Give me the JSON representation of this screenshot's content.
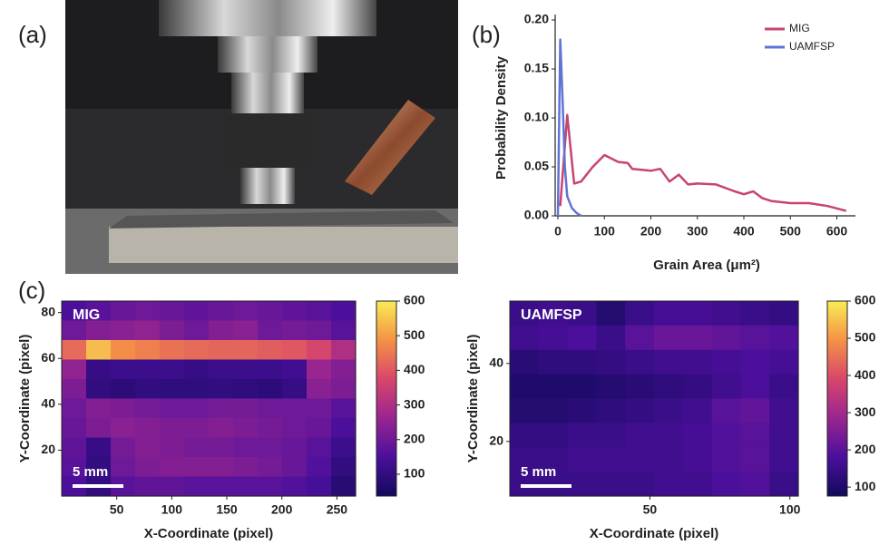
{
  "panel_labels": [
    "(a)",
    "(b)",
    "(c)"
  ],
  "chart_data": [
    {
      "type": "line",
      "xlabel": "Grain Area (μm²)",
      "ylabel": "Probability Density",
      "xlim": [
        0,
        640
      ],
      "xticks": [
        0,
        100,
        200,
        300,
        400,
        500,
        600
      ],
      "ylim": [
        0,
        0.2
      ],
      "yticks": [
        {
          "value": 0,
          "label": "0.00"
        },
        {
          "value": 0.05,
          "label": "0.05"
        },
        {
          "value": 0.1,
          "label": "0.10"
        },
        {
          "value": 0.15,
          "label": "0.15"
        },
        {
          "value": 0.2,
          "label": "0.20"
        }
      ],
      "legend": "upper right",
      "series": [
        {
          "name": "MIG",
          "color": "#c8446f",
          "x": [
            5,
            20,
            35,
            50,
            75,
            100,
            130,
            150,
            160,
            200,
            220,
            240,
            260,
            280,
            300,
            340,
            380,
            400,
            420,
            440,
            460,
            500,
            540,
            580,
            620
          ],
          "values": [
            0.01,
            0.103,
            0.033,
            0.035,
            0.05,
            0.062,
            0.055,
            0.054,
            0.048,
            0.046,
            0.048,
            0.035,
            0.042,
            0.032,
            0.033,
            0.032,
            0.025,
            0.022,
            0.025,
            0.018,
            0.015,
            0.013,
            0.013,
            0.01,
            0.005
          ]
        },
        {
          "name": "UAMFSP",
          "color": "#5f73d6",
          "x": [
            0,
            5,
            10,
            15,
            20,
            30,
            40,
            50
          ],
          "values": [
            0,
            0.18,
            0.12,
            0.05,
            0.02,
            0.008,
            0.003,
            0
          ]
        }
      ]
    },
    {
      "type": "heatmap",
      "title": "MIG",
      "scalebar": "5 mm",
      "xlabel": "X-Coordinate (pixel)",
      "ylabel": "Y-Coordinate (pixel)",
      "xlim": [
        0,
        267
      ],
      "xticks": [
        50,
        100,
        150,
        200,
        250
      ],
      "ylim": [
        0,
        85
      ],
      "yticks": [
        20,
        40,
        60,
        80
      ],
      "clim": [
        37,
        600
      ],
      "cticks": [
        100,
        200,
        300,
        400,
        500,
        600
      ],
      "colormap": [
        "#120a5c",
        "#4b0f9c",
        "#9a2590",
        "#d8466a",
        "#f59246",
        "#f8ec55"
      ],
      "z": [
        [
          150,
          170,
          190,
          200,
          190,
          180,
          190,
          200,
          190,
          180,
          170,
          150
        ],
        [
          200,
          230,
          240,
          250,
          220,
          200,
          230,
          240,
          200,
          210,
          200,
          170
        ],
        [
          430,
          540,
          480,
          460,
          440,
          430,
          420,
          420,
          410,
          400,
          370,
          300
        ],
        [
          250,
          110,
          120,
          120,
          120,
          110,
          120,
          120,
          120,
          130,
          260,
          230
        ],
        [
          220,
          100,
          90,
          100,
          95,
          95,
          100,
          95,
          90,
          110,
          240,
          220
        ],
        [
          200,
          230,
          220,
          210,
          200,
          200,
          210,
          210,
          200,
          200,
          200,
          170
        ],
        [
          190,
          220,
          240,
          230,
          220,
          220,
          230,
          220,
          210,
          200,
          190,
          150
        ],
        [
          180,
          110,
          210,
          230,
          220,
          210,
          210,
          200,
          200,
          190,
          170,
          120
        ],
        [
          170,
          100,
          200,
          220,
          230,
          230,
          230,
          220,
          210,
          190,
          160,
          100
        ],
        [
          150,
          100,
          170,
          180,
          180,
          170,
          170,
          170,
          170,
          160,
          140,
          80
        ]
      ]
    },
    {
      "type": "heatmap",
      "title": "UAMFSP",
      "scalebar": "5 mm",
      "xlabel": "X-Coordinate (pixel)",
      "ylabel": "Y-Coordinate (pixel)",
      "xlim": [
        0,
        103
      ],
      "xticks": [
        50,
        100
      ],
      "ylim": [
        6,
        56
      ],
      "yticks": [
        20,
        40
      ],
      "clim": [
        76,
        600
      ],
      "cticks": [
        100,
        200,
        300,
        400,
        500,
        600
      ],
      "colormap": [
        "#120a5c",
        "#4b0f9c",
        "#9a2590",
        "#d8466a",
        "#f59246",
        "#f8ec55"
      ],
      "z": [
        [
          150,
          160,
          150,
          110,
          150,
          170,
          170,
          160,
          150,
          140
        ],
        [
          160,
          170,
          180,
          150,
          200,
          220,
          220,
          210,
          200,
          190
        ],
        [
          120,
          130,
          130,
          140,
          150,
          160,
          160,
          170,
          180,
          170
        ],
        [
          100,
          100,
          100,
          110,
          120,
          130,
          140,
          160,
          180,
          150
        ],
        [
          110,
          110,
          120,
          130,
          140,
          150,
          160,
          200,
          210,
          160
        ],
        [
          140,
          140,
          150,
          150,
          160,
          160,
          170,
          190,
          200,
          160
        ],
        [
          150,
          150,
          160,
          160,
          160,
          160,
          170,
          190,
          200,
          160
        ],
        [
          150,
          150,
          150,
          150,
          150,
          160,
          160,
          180,
          190,
          150
        ]
      ]
    }
  ]
}
